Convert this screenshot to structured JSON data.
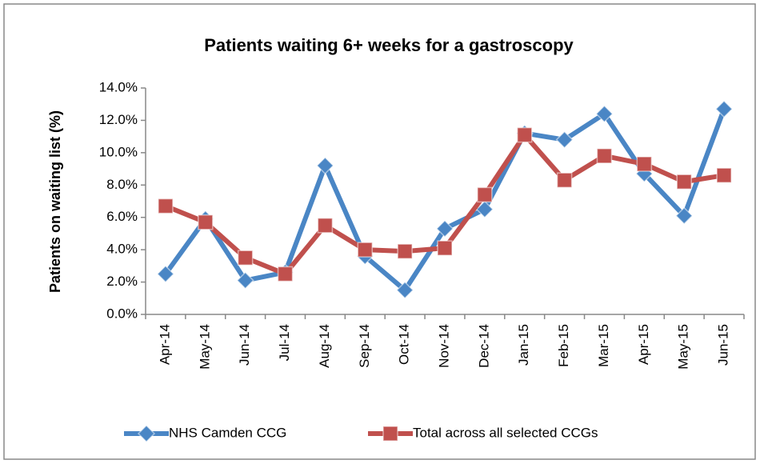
{
  "chart_data": {
    "type": "line",
    "title": "Patients waiting 6+ weeks for a gastroscopy",
    "y_label": "Patients on waiting list (%)",
    "categories": [
      "Apr-14",
      "May-14",
      "Jun-14",
      "Jul-14",
      "Aug-14",
      "Sep-14",
      "Oct-14",
      "Nov-14",
      "Dec-14",
      "Jan-15",
      "Feb-15",
      "Mar-15",
      "Apr-15",
      "May-15",
      "Jun-15"
    ],
    "series": [
      {
        "name": "NHS Camden CCG",
        "color": "#4a86c5",
        "marker": "diamond",
        "values": [
          2.5,
          5.9,
          2.1,
          2.6,
          9.2,
          3.6,
          1.5,
          5.3,
          6.5,
          11.2,
          10.8,
          12.4,
          8.7,
          6.1,
          12.7
        ]
      },
      {
        "name": "Total across all selected CCGs",
        "color": "#c0504d",
        "marker": "square",
        "values": [
          6.7,
          5.7,
          3.5,
          2.5,
          5.5,
          4.0,
          3.9,
          4.1,
          7.4,
          11.1,
          8.3,
          9.8,
          9.3,
          8.2,
          8.6
        ]
      }
    ],
    "ylim": [
      0,
      14
    ],
    "yticks": [
      {
        "value": 0,
        "label": "0.0%"
      },
      {
        "value": 2,
        "label": "2.0%"
      },
      {
        "value": 4,
        "label": "4.0%"
      },
      {
        "value": 6,
        "label": "6.0%"
      },
      {
        "value": 8,
        "label": "8.0%"
      },
      {
        "value": 10,
        "label": "10.0%"
      },
      {
        "value": 12,
        "label": "12.0%"
      },
      {
        "value": 14,
        "label": "14.0%"
      }
    ],
    "grid": false,
    "legend": "bottom"
  }
}
